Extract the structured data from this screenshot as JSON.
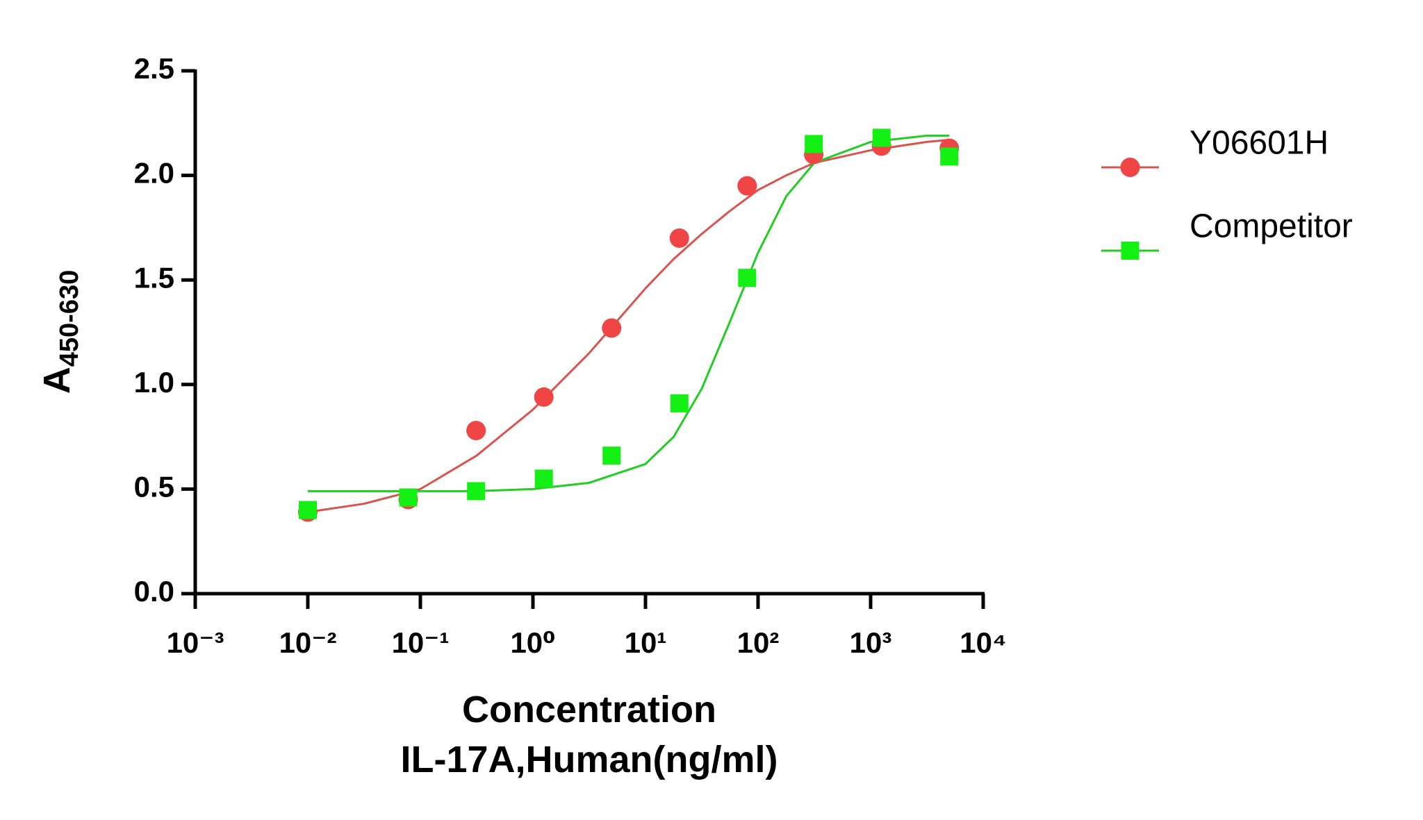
{
  "chart_data": {
    "type": "scatter",
    "x_label": [
      "Concentration",
      "IL-17A,Human(ng/ml)"
    ],
    "y_label": "A",
    "y_label_subscript": "450-630",
    "x_log": true,
    "xlim": [
      0.001,
      10000
    ],
    "xticks": [
      {
        "value": 0.001,
        "label": "10⁻³"
      },
      {
        "value": 0.01,
        "label": "10⁻²"
      },
      {
        "value": 0.1,
        "label": "10⁻¹"
      },
      {
        "value": 1,
        "label": "10⁰"
      },
      {
        "value": 10,
        "label": "10¹"
      },
      {
        "value": 100,
        "label": "10²"
      },
      {
        "value": 1000,
        "label": "10³"
      },
      {
        "value": 10000,
        "label": "10⁴"
      }
    ],
    "ylim": [
      0,
      2.5
    ],
    "yticks": [
      {
        "value": 0,
        "label": "0.0"
      },
      0.5,
      {
        "value": 1,
        "label": "1.0"
      },
      1.5,
      {
        "value": 2,
        "label": "2.0"
      },
      2.5
    ],
    "legend": "right",
    "series": [
      {
        "name": "Y06601H",
        "color": "#f04545",
        "line_color": "#d9534f",
        "marker": "circle",
        "x": [
          0.01,
          0.078,
          0.3125,
          1.25,
          5,
          20,
          80,
          312.5,
          1250,
          5000
        ],
        "values": [
          0.39,
          0.45,
          0.78,
          0.94,
          1.27,
          1.7,
          1.95,
          2.1,
          2.14,
          2.13
        ],
        "fit_x": [
          0.01,
          0.0316,
          0.1,
          0.316,
          1,
          3.16,
          10,
          17.8,
          31.6,
          56.2,
          100,
          178,
          316,
          1000,
          3162,
          5000
        ],
        "fit_y": [
          0.39,
          0.43,
          0.5,
          0.66,
          0.88,
          1.15,
          1.46,
          1.6,
          1.72,
          1.83,
          1.93,
          2.0,
          2.06,
          2.12,
          2.16,
          2.17
        ]
      },
      {
        "name": "Competitor",
        "color": "#14f014",
        "line_color": "#22cc22",
        "marker": "square",
        "x": [
          0.01,
          0.078,
          0.3125,
          1.25,
          5,
          20,
          80,
          312.5,
          1250,
          5000
        ],
        "values": [
          0.4,
          0.46,
          0.49,
          0.55,
          0.66,
          0.91,
          1.51,
          2.15,
          2.18,
          2.09
        ],
        "fit_x": [
          0.01,
          0.0316,
          0.1,
          0.316,
          1,
          3.16,
          10,
          17.8,
          31.6,
          56.2,
          100,
          178,
          316,
          1000,
          3162,
          5000
        ],
        "fit_y": [
          0.49,
          0.49,
          0.49,
          0.49,
          0.5,
          0.53,
          0.62,
          0.75,
          0.98,
          1.3,
          1.63,
          1.9,
          2.06,
          2.16,
          2.19,
          2.19
        ]
      }
    ]
  }
}
